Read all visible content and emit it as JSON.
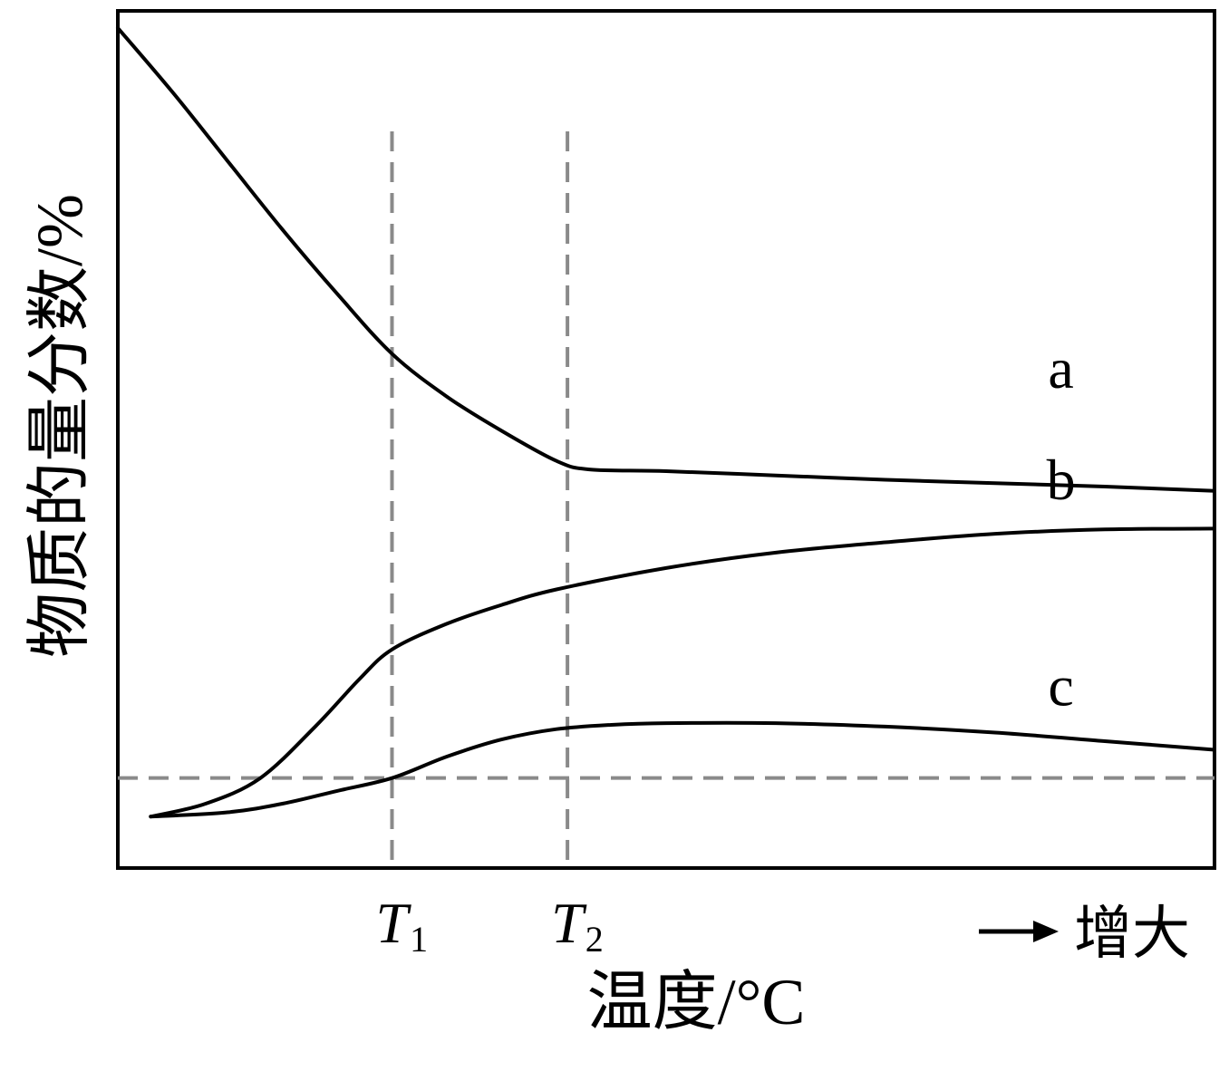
{
  "chart_data": {
    "type": "line",
    "title": "",
    "xlabel": "温度/°C",
    "ylabel": "物质的量分数/%",
    "x_direction_label": "增大",
    "xlim": [
      0,
      10
    ],
    "ylim": [
      0,
      100
    ],
    "x_ticks": [
      {
        "main": "T",
        "sub": "1",
        "x": 2.5
      },
      {
        "main": "T",
        "sub": "2",
        "x": 4.1
      }
    ],
    "reference_lines": {
      "vertical": [
        2.5,
        4.1
      ],
      "horizontal": [
        10.5
      ]
    },
    "series": [
      {
        "name": "a",
        "points": [
          [
            0,
            98
          ],
          [
            0.5,
            90.5
          ],
          [
            1,
            82.5
          ],
          [
            1.5,
            74.5
          ],
          [
            2,
            67
          ],
          [
            2.5,
            60
          ],
          [
            3,
            55
          ],
          [
            3.5,
            51
          ],
          [
            4,
            47.5
          ],
          [
            4.3,
            46.5
          ],
          [
            5,
            46.3
          ],
          [
            6,
            45.8
          ],
          [
            7,
            45.3
          ],
          [
            8,
            44.9
          ],
          [
            9,
            44.5
          ],
          [
            10,
            44
          ]
        ]
      },
      {
        "name": "b",
        "points": [
          [
            0.3,
            6
          ],
          [
            0.8,
            7.5
          ],
          [
            1.3,
            10.5
          ],
          [
            1.8,
            16.5
          ],
          [
            2.2,
            22
          ],
          [
            2.5,
            25.5
          ],
          [
            3,
            28.5
          ],
          [
            3.5,
            30.7
          ],
          [
            4,
            32.5
          ],
          [
            5,
            35
          ],
          [
            6,
            36.8
          ],
          [
            7,
            38
          ],
          [
            8,
            39
          ],
          [
            9,
            39.5
          ],
          [
            10,
            39.6
          ]
        ]
      },
      {
        "name": "c",
        "points": [
          [
            0.3,
            6
          ],
          [
            1,
            6.5
          ],
          [
            1.5,
            7.5
          ],
          [
            2,
            9
          ],
          [
            2.5,
            10.5
          ],
          [
            3,
            13
          ],
          [
            3.5,
            15
          ],
          [
            4,
            16.2
          ],
          [
            4.5,
            16.7
          ],
          [
            5,
            16.9
          ],
          [
            6,
            16.9
          ],
          [
            7,
            16.5
          ],
          [
            8,
            15.8
          ],
          [
            9,
            14.8
          ],
          [
            10,
            13.8
          ]
        ]
      }
    ],
    "label_positions": {
      "a": [
        8.6,
        56
      ],
      "b": [
        8.6,
        43
      ],
      "c": [
        8.6,
        19
      ]
    },
    "grid": false,
    "legend": "none"
  }
}
